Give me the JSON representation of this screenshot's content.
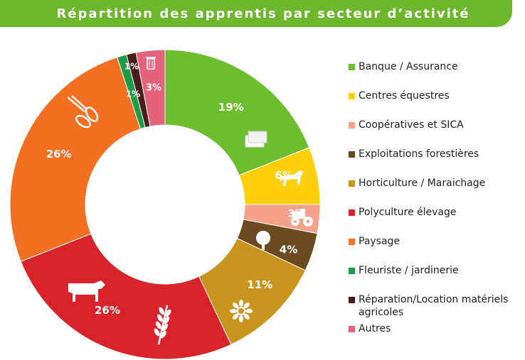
{
  "title": "Répartition des apprentis par secteur d’activité",
  "colors": {
    "title_bar": "#6cb72c",
    "text": "#222222"
  },
  "chart_data": {
    "type": "pie",
    "donut": true,
    "title": "Répartition des apprentis par secteur d’activité",
    "legend_position": "right",
    "categories": [
      "Banque / Assurance",
      "Centres équestres",
      "Coopératives et SICA",
      "Exploitations forestières",
      "Horticulture / Maraichage",
      "Polyculture élevage",
      "Paysage",
      "Fleuriste / jardinerie",
      "Réparation/Location matériels agricoles",
      "Autres"
    ],
    "values": [
      19,
      6,
      3,
      4,
      11,
      26,
      26,
      1,
      1,
      3
    ],
    "value_labels": [
      "19%",
      "6%",
      "3%",
      "4%",
      "11%",
      "26%",
      "26%",
      "1%",
      "1%",
      "3%"
    ],
    "colors": [
      "#6cbe2e",
      "#fdcf0c",
      "#f6a189",
      "#6b4a21",
      "#c9951f",
      "#d8232a",
      "#f36f21",
      "#1e9b48",
      "#4a1c1c",
      "#e5637a"
    ],
    "icons": [
      "banknotes-icon",
      "horse-icon",
      "tractor-icon",
      "tree-icon",
      "flower-icon",
      "cow-icon",
      "wheat-icon",
      "pruning-shears-icon",
      "",
      "trash-bin-icon"
    ]
  }
}
